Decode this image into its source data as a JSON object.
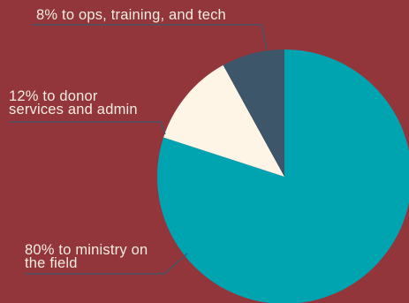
{
  "chart_data": {
    "type": "pie",
    "slices": [
      {
        "label": "80% to ministry on\nthe field",
        "value": 80,
        "color": "#00a3b0"
      },
      {
        "label": "12% to donor\nservices and admin",
        "value": 12,
        "color": "#fff5e6"
      },
      {
        "label": "8% to ops, training, and tech",
        "value": 8,
        "color": "#3e566a"
      }
    ],
    "start": "top",
    "direction": "clockwise",
    "legend": "none"
  }
}
